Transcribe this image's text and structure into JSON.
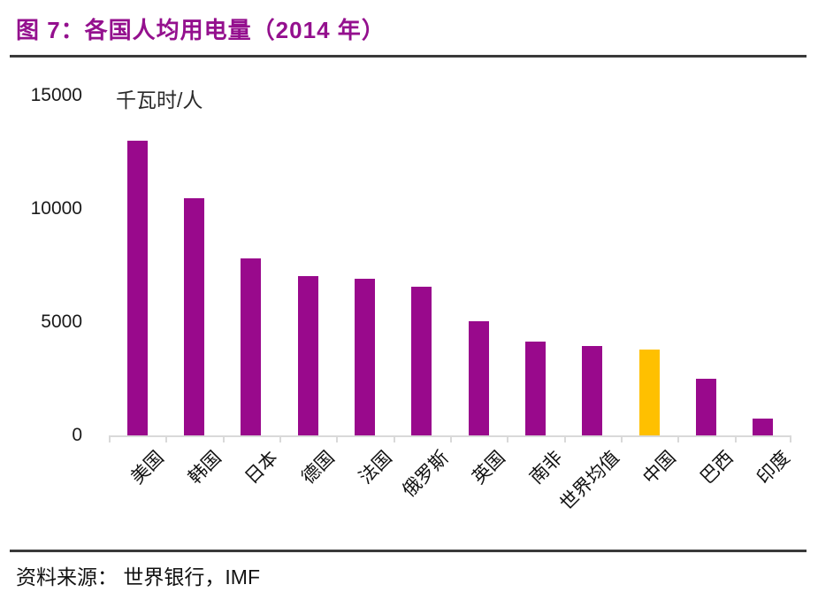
{
  "header": {
    "title": "图 7：各国人均用电量（2014 年）",
    "title_color": "#94108E"
  },
  "footer": {
    "source": "资料来源： 世界银行，IMF"
  },
  "chart_data": {
    "type": "bar",
    "title": "图 7：各国人均用电量（2014 年）",
    "unit_label": "千瓦时/人",
    "categories": [
      "美国",
      "韩国",
      "日本",
      "德国",
      "法国",
      "俄罗斯",
      "英国",
      "南非",
      "世界均值",
      "中国",
      "巴西",
      "印度"
    ],
    "values": [
      13000,
      10450,
      7800,
      7050,
      6900,
      6550,
      5050,
      4150,
      3950,
      3800,
      2500,
      750
    ],
    "highlight_category": "中国",
    "bar_color": "#99098C",
    "highlight_color": "#FFC000",
    "axis_color": "#D9D9D9",
    "xlabel": "",
    "ylabel": "千瓦时/人",
    "ylim": [
      0,
      15000
    ],
    "yticks": [
      0,
      5000,
      10000,
      15000
    ],
    "grid": false,
    "legend": false,
    "source": "资料来源： 世界银行，IMF"
  }
}
